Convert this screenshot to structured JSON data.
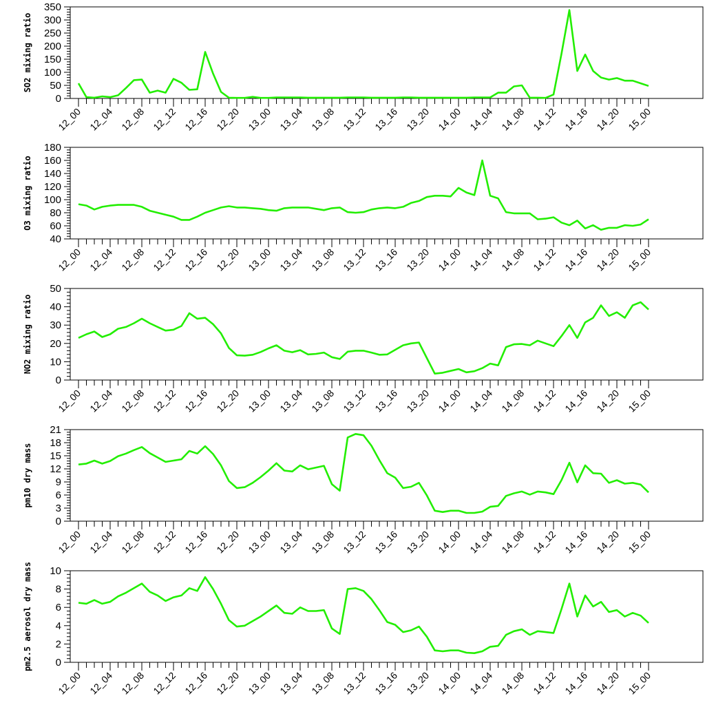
{
  "x_tick_labels": [
    "12_00",
    "12_04",
    "12_08",
    "12_12",
    "12_16",
    "12_20",
    "13_00",
    "13_04",
    "13_08",
    "13_12",
    "13_16",
    "13_20",
    "14_00",
    "14_04",
    "14_08",
    "14_12",
    "14_16",
    "14_20",
    "15_00"
  ],
  "colors": {
    "series": "#22ee00",
    "axes": "#000000",
    "background": "#ffffff"
  },
  "chart_data": [
    {
      "type": "line",
      "ylabel": "SO2 mixing ratio",
      "ylim": [
        0,
        350
      ],
      "yticks": [
        0,
        50,
        100,
        150,
        200,
        250,
        300,
        350
      ],
      "x_range": [
        0,
        72
      ],
      "grid": false,
      "series": [
        {
          "values": [
            58,
            5,
            3,
            8,
            5,
            12,
            40,
            70,
            72,
            22,
            30,
            22,
            75,
            60,
            33,
            35,
            178,
            95,
            25,
            3,
            2,
            2,
            6,
            2,
            2,
            4,
            4,
            4,
            4,
            3,
            3,
            3,
            3,
            3,
            4,
            4,
            4,
            3,
            3,
            3,
            3,
            4,
            4,
            3,
            3,
            3,
            3,
            3,
            3,
            3,
            4,
            4,
            4,
            22,
            22,
            46,
            50,
            3,
            3,
            2,
            15,
            170,
            338,
            105,
            168,
            105,
            80,
            72,
            78,
            68,
            68,
            58,
            48
          ]
        }
      ]
    },
    {
      "type": "line",
      "ylabel": "O3 mixing ratio",
      "ylim": [
        40,
        180
      ],
      "yticks": [
        40,
        60,
        80,
        100,
        120,
        140,
        160,
        180
      ],
      "x_range": [
        0,
        72
      ],
      "grid": false,
      "series": [
        {
          "values": [
            93,
            91,
            85,
            89,
            91,
            92,
            92,
            92,
            89,
            83,
            80,
            77,
            74,
            69,
            69,
            74,
            80,
            84,
            88,
            90,
            88,
            88,
            87,
            86,
            84,
            83,
            87,
            88,
            88,
            88,
            86,
            84,
            87,
            88,
            81,
            80,
            81,
            85,
            87,
            88,
            87,
            89,
            95,
            98,
            104,
            106,
            106,
            105,
            118,
            111,
            107,
            160,
            106,
            102,
            81,
            79,
            79,
            79,
            70,
            71,
            73,
            65,
            61,
            68,
            56,
            61,
            54,
            57,
            57,
            61,
            60,
            62,
            70
          ]
        }
      ]
    },
    {
      "type": "line",
      "ylabel": "NO2 mixing ratio",
      "ylim": [
        0,
        50
      ],
      "yticks": [
        0,
        10,
        20,
        30,
        40,
        50
      ],
      "x_range": [
        0,
        72
      ],
      "grid": false,
      "series": [
        {
          "values": [
            23,
            25,
            26.5,
            23.5,
            25,
            28,
            29,
            31,
            33.5,
            31,
            29,
            27,
            27.5,
            29.5,
            36.5,
            33.5,
            34,
            30.5,
            25.5,
            17.5,
            13.5,
            13.3,
            13.8,
            15.3,
            17.3,
            19,
            16,
            15.2,
            16.3,
            14,
            14.3,
            15,
            12.5,
            11.5,
            15.5,
            16,
            16,
            15,
            13.8,
            14,
            16.5,
            19,
            20,
            20.5,
            12,
            3.5,
            4,
            5,
            6,
            4.2,
            4.8,
            6.5,
            9,
            8,
            18,
            19.5,
            19.7,
            19,
            21.5,
            20,
            18.5,
            24,
            30,
            23,
            31.5,
            34,
            40.8,
            35,
            37,
            34,
            40.8,
            42.5,
            38.5
          ]
        }
      ]
    },
    {
      "type": "line",
      "ylabel": "pm10 dry mass",
      "ylim": [
        0,
        21
      ],
      "yticks": [
        0,
        3,
        6,
        9,
        12,
        15,
        18,
        21
      ],
      "x_range": [
        0,
        72
      ],
      "grid": false,
      "series": [
        {
          "values": [
            13,
            13.2,
            13.9,
            13.2,
            13.8,
            14.9,
            15.5,
            16.3,
            17,
            15.6,
            14.6,
            13.6,
            13.9,
            14.2,
            16.1,
            15.5,
            17.2,
            15.4,
            12.8,
            9.2,
            7.6,
            7.8,
            8.8,
            10.1,
            11.6,
            13.3,
            11.6,
            11.4,
            12.8,
            11.9,
            12.3,
            12.7,
            8.5,
            7,
            19.2,
            20,
            19.7,
            17.3,
            14,
            11,
            10,
            7.6,
            7.9,
            8.8,
            5.9,
            2.4,
            2.1,
            2.4,
            2.4,
            1.9,
            1.9,
            2.2,
            3.3,
            3.5,
            5.8,
            6.4,
            6.8,
            6.1,
            6.8,
            6.6,
            6.2,
            9.4,
            13.4,
            8.9,
            12.8,
            11,
            10.9,
            8.8,
            9.4,
            8.6,
            8.8,
            8.4,
            6.6
          ]
        }
      ]
    },
    {
      "type": "line",
      "ylabel": "pm2.5 aerosol dry mass",
      "ylim": [
        0,
        10
      ],
      "yticks": [
        0,
        2,
        4,
        6,
        8,
        10
      ],
      "x_range": [
        0,
        72
      ],
      "grid": false,
      "series": [
        {
          "values": [
            6.5,
            6.4,
            6.8,
            6.4,
            6.6,
            7.2,
            7.6,
            8.1,
            8.6,
            7.7,
            7.3,
            6.7,
            7.1,
            7.3,
            8.1,
            7.8,
            9.3,
            8,
            6.4,
            4.6,
            3.9,
            4,
            4.5,
            5,
            5.6,
            6.2,
            5.4,
            5.3,
            6,
            5.6,
            5.6,
            5.7,
            3.7,
            3.1,
            8,
            8.1,
            7.8,
            6.9,
            5.7,
            4.4,
            4.1,
            3.3,
            3.5,
            3.9,
            2.8,
            1.3,
            1.2,
            1.3,
            1.3,
            1.05,
            1,
            1.2,
            1.7,
            1.8,
            3,
            3.4,
            3.6,
            3,
            3.4,
            3.3,
            3.2,
            5.8,
            8.6,
            5,
            7.3,
            6.1,
            6.6,
            5.5,
            5.7,
            5,
            5.4,
            5.1,
            4.3
          ]
        }
      ]
    }
  ]
}
